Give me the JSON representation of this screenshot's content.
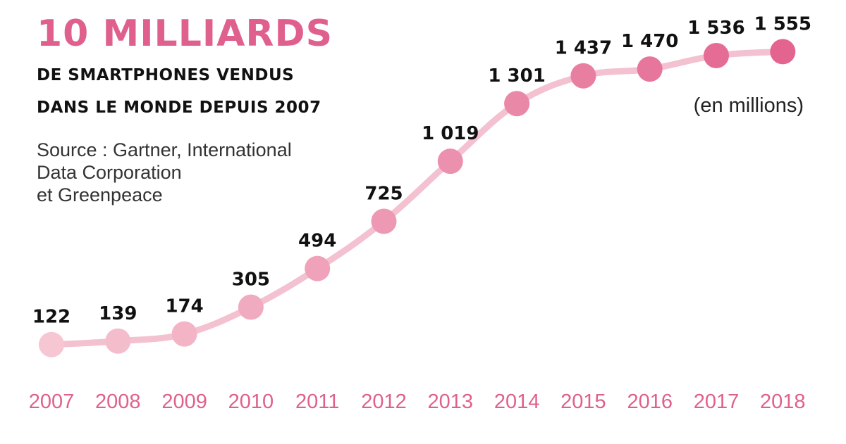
{
  "header": {
    "title": "10 MILLIARDS",
    "subtitle_line1": "DE SMARTPHONES VENDUS",
    "subtitle_line2": "DANS LE MONDE DEPUIS 2007",
    "source_lines": [
      "Source : Gartner, International",
      "Data Corporation",
      "et Greenpeace"
    ],
    "unit": "(en millions)"
  },
  "colors": {
    "accent": "#e0608d",
    "line": "#f3c1cf",
    "dot_light": "#f6c6d2",
    "dot_dark": "#e3648f"
  },
  "chart_data": {
    "type": "line",
    "x": [
      "2007",
      "2008",
      "2009",
      "2010",
      "2011",
      "2012",
      "2013",
      "2014",
      "2015",
      "2016",
      "2017",
      "2018"
    ],
    "values": [
      122,
      139,
      174,
      305,
      494,
      725,
      1019,
      1301,
      1437,
      1470,
      1536,
      1555
    ],
    "data_labels": [
      "122",
      "139",
      "174",
      "305",
      "494",
      "725",
      "1 019",
      "1 301",
      "1 437",
      "1 470",
      "1 536",
      "1 555"
    ],
    "title": "10 MILLIARDS",
    "xlabel": "",
    "ylabel": "(en millions)",
    "grid": false,
    "legend": "none"
  }
}
